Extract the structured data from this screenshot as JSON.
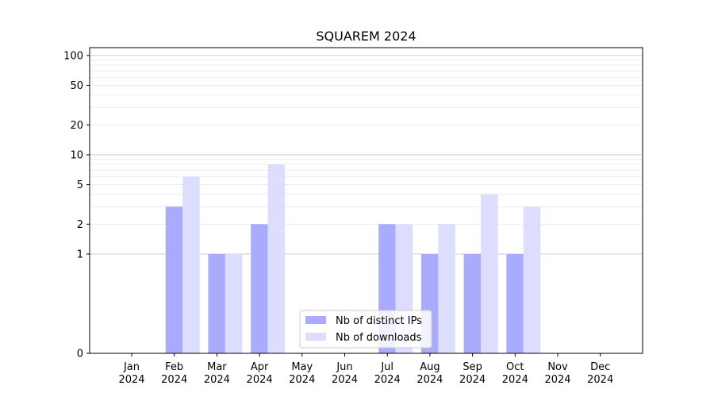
{
  "chart_data": {
    "type": "bar",
    "title": "SQUAREM 2024",
    "xlabel": "",
    "ylabel": "",
    "categories": [
      {
        "month": "Jan",
        "year": "2024"
      },
      {
        "month": "Feb",
        "year": "2024"
      },
      {
        "month": "Mar",
        "year": "2024"
      },
      {
        "month": "Apr",
        "year": "2024"
      },
      {
        "month": "May",
        "year": "2024"
      },
      {
        "month": "Jun",
        "year": "2024"
      },
      {
        "month": "Jul",
        "year": "2024"
      },
      {
        "month": "Aug",
        "year": "2024"
      },
      {
        "month": "Sep",
        "year": "2024"
      },
      {
        "month": "Oct",
        "year": "2024"
      },
      {
        "month": "Nov",
        "year": "2024"
      },
      {
        "month": "Dec",
        "year": "2024"
      }
    ],
    "series": [
      {
        "name": "Nb of distinct IPs",
        "color": "#aaaaff",
        "values": [
          0,
          3,
          1,
          2,
          0,
          0,
          2,
          1,
          1,
          1,
          0,
          0
        ]
      },
      {
        "name": "Nb of downloads",
        "color": "#ddddff",
        "values": [
          0,
          6,
          1,
          8,
          0,
          0,
          2,
          2,
          4,
          3,
          0,
          0
        ]
      }
    ],
    "yscale": "symlog",
    "ylim": [
      0,
      120
    ],
    "yticks": [
      0,
      1,
      2,
      5,
      10,
      20,
      50,
      100
    ],
    "grid": true,
    "legend_position": "lower-center"
  }
}
